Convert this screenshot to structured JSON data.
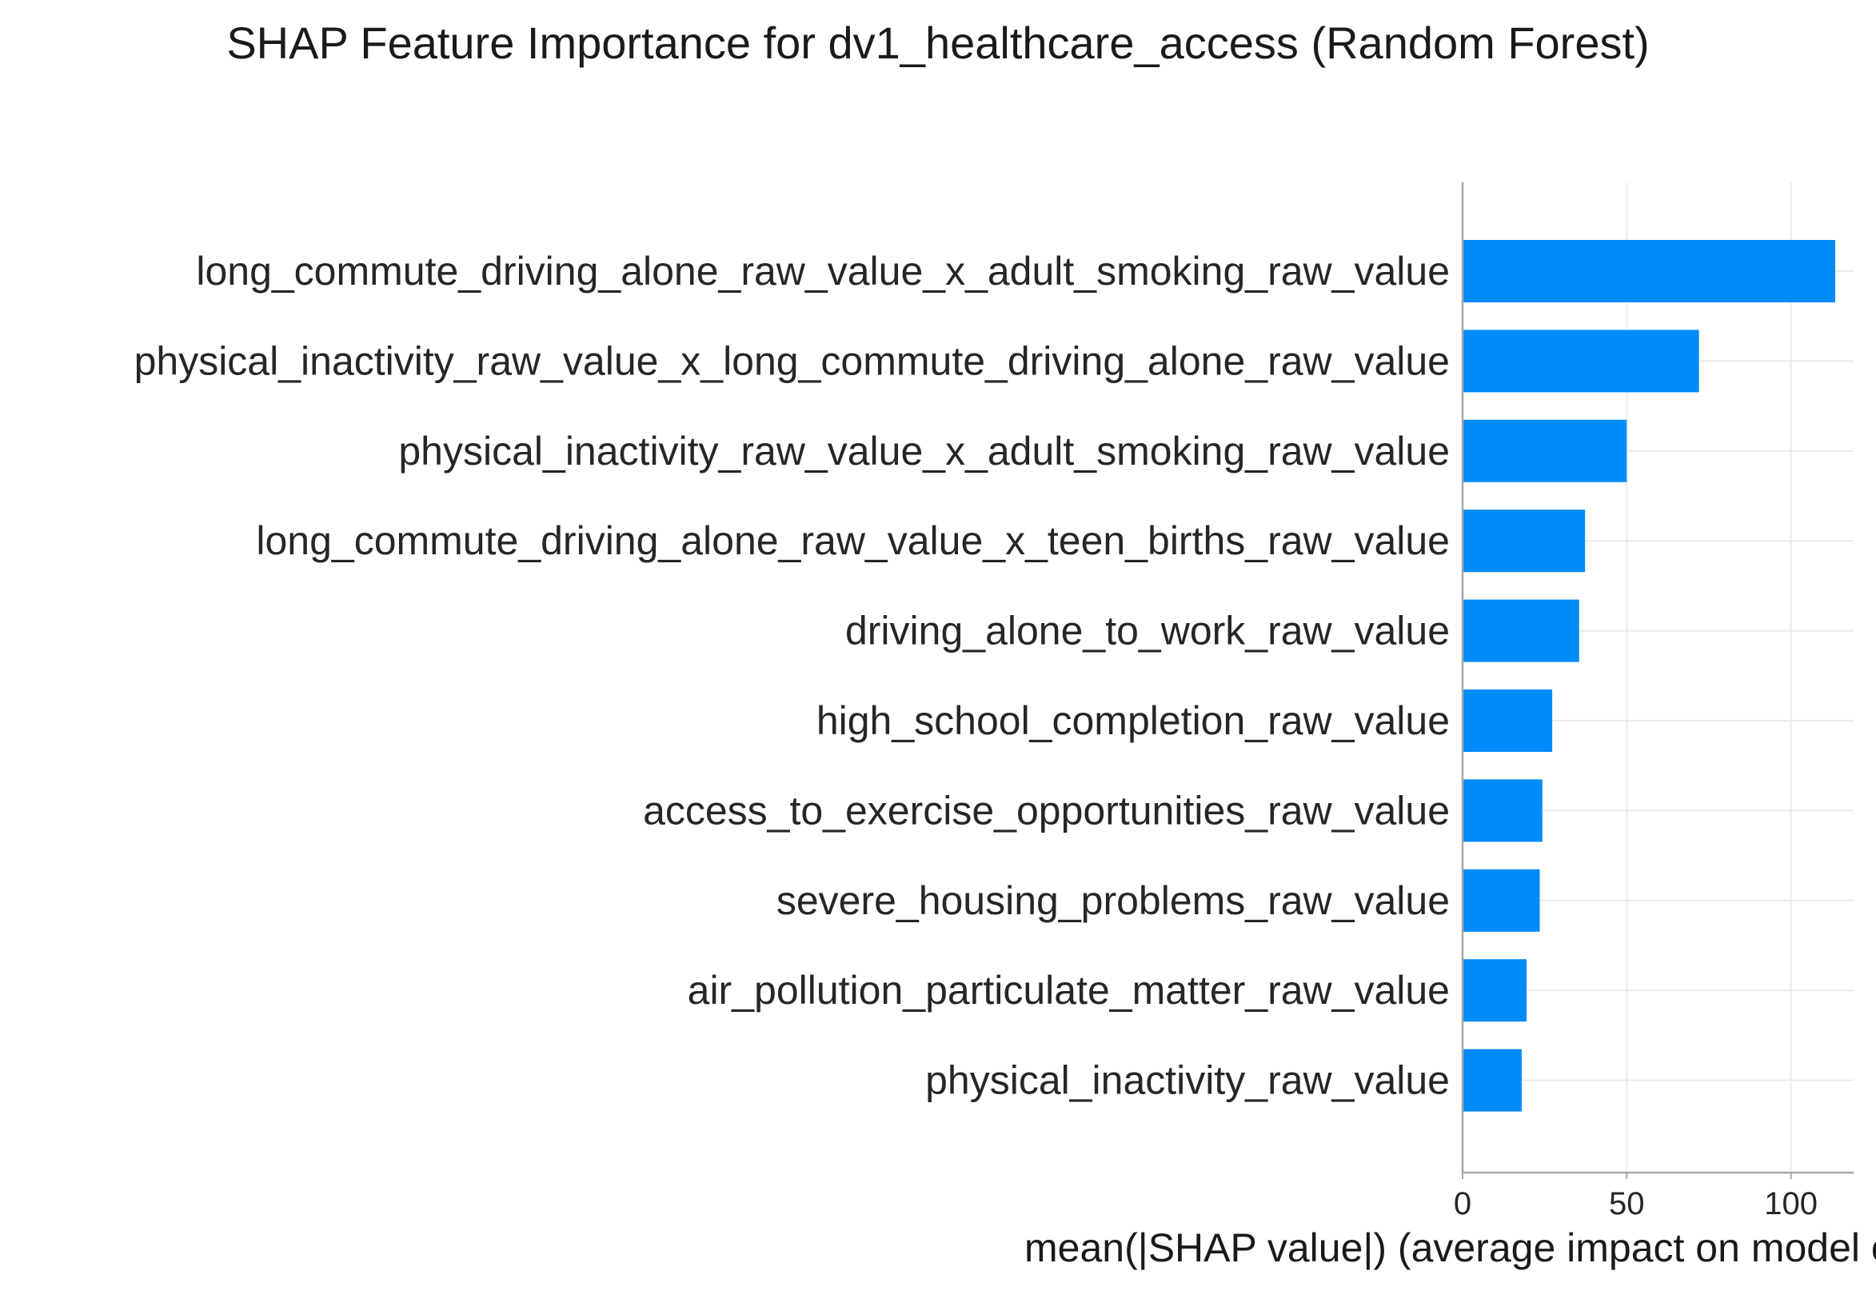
{
  "chart_data": {
    "type": "bar",
    "orientation": "horizontal",
    "title": "SHAP Feature Importance for dv1_healthcare_access (Random Forest)",
    "xlabel": "mean(|SHAP value|) (average impact on model output magnitude)",
    "ylabel": "",
    "categories": [
      "long_commute_driving_alone_raw_value_x_adult_smoking_raw_value",
      "physical_inactivity_raw_value_x_long_commute_driving_alone_raw_value",
      "physical_inactivity_raw_value_x_adult_smoking_raw_value",
      "long_commute_driving_alone_raw_value_x_teen_births_raw_value",
      "driving_alone_to_work_raw_value",
      "high_school_completion_raw_value",
      "access_to_exercise_opportunities_raw_value",
      "severe_housing_problems_raw_value",
      "air_pollution_particulate_matter_raw_value",
      "physical_inactivity_raw_value"
    ],
    "values": [
      113.5,
      72,
      50,
      37.3,
      35.5,
      27.3,
      24.3,
      23.5,
      19.5,
      18
    ],
    "xlim": [
      0,
      119
    ],
    "xticks": [
      0,
      50,
      100
    ],
    "grid": true,
    "bar_color": "#008bfb",
    "grid_color": "#ebebeb",
    "axis_color": "#a6a6a6"
  }
}
